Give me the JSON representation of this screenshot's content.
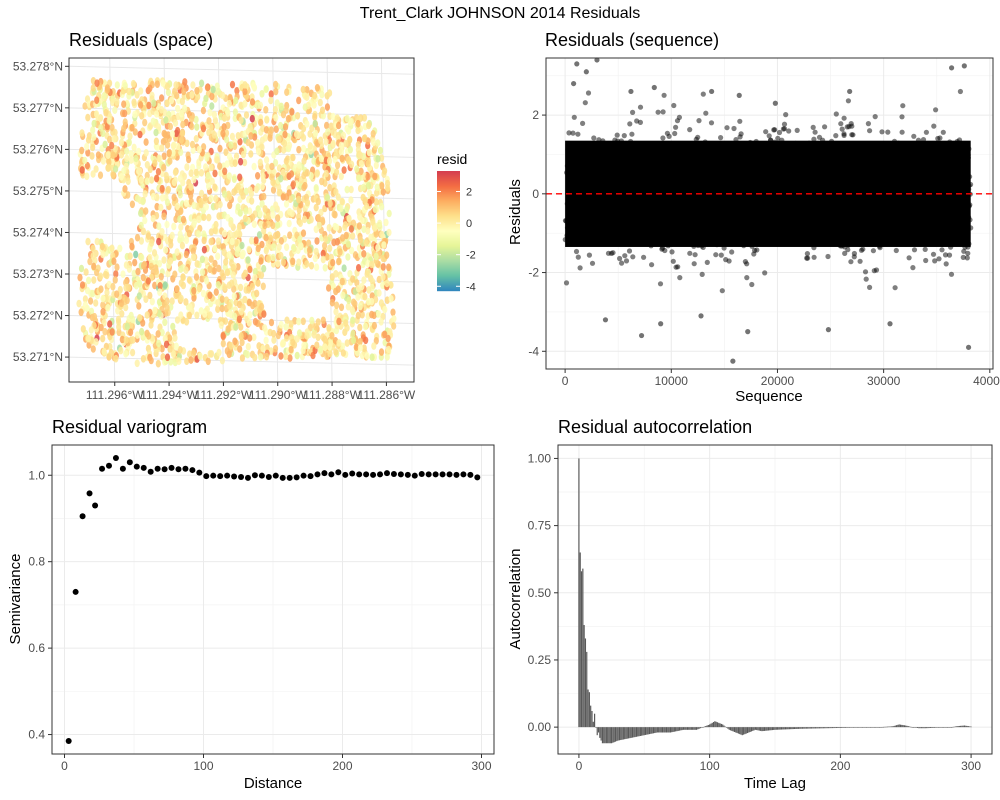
{
  "figure_title": "Trent_Clark JOHNSON 2014 Residuals",
  "chart_data": [
    {
      "id": "space",
      "type": "scatter",
      "title": "Residuals (space)",
      "xlabel": "",
      "ylabel": "",
      "x_ticks": [
        "111.296°W",
        "111.294°W",
        "111.292°W",
        "111.290°W",
        "111.288°W",
        "111.286°W"
      ],
      "y_ticks": [
        "53.271°N",
        "53.272°N",
        "53.273°N",
        "53.274°N",
        "53.275°N",
        "53.276°N",
        "53.277°N",
        "53.278°N"
      ],
      "xlim": [
        -111.2975,
        -111.2848
      ],
      "ylim": [
        53.2704,
        53.2782
      ],
      "legend": {
        "title": "resid",
        "labels": [
          "2",
          "0",
          "-2",
          "-4"
        ],
        "range": [
          -4.3,
          3.3
        ],
        "colors": [
          "#3288bd",
          "#66c2a5",
          "#abdda4",
          "#e6f598",
          "#ffffbf",
          "#fee08b",
          "#fdae61",
          "#f46d43",
          "#d53e4f"
        ],
        "placement": "right"
      },
      "field_outline_lonlat": [
        [
          -111.2968,
          53.2777
        ],
        [
          -111.2912,
          53.2776
        ],
        [
          -111.288,
          53.2775
        ],
        [
          -111.2876,
          53.277
        ],
        [
          -111.2866,
          53.2768
        ],
        [
          -111.286,
          53.2762
        ],
        [
          -111.2857,
          53.2752
        ],
        [
          -111.2857,
          53.274
        ],
        [
          -111.2856,
          53.2728
        ],
        [
          -111.2855,
          53.2716
        ],
        [
          -111.2857,
          53.271
        ],
        [
          -111.292,
          53.2709
        ],
        [
          -111.295,
          53.2708
        ],
        [
          -111.296,
          53.2709
        ],
        [
          -111.2968,
          53.2712
        ],
        [
          -111.2972,
          53.2722
        ],
        [
          -111.297,
          53.274
        ],
        [
          -111.2971,
          53.276
        ]
      ],
      "field_holes_lonlat": [
        [
          [
            -111.2972,
            53.2754
          ],
          [
            -111.2958,
            53.2752
          ],
          [
            -111.295,
            53.2745
          ],
          [
            -111.295,
            53.2738
          ],
          [
            -111.2972,
            53.2738
          ]
        ],
        [
          [
            -111.2903,
            53.2731
          ],
          [
            -111.288,
            53.2731
          ],
          [
            -111.2879,
            53.2719
          ],
          [
            -111.2903,
            53.2719
          ]
        ],
        [
          [
            -111.2935,
            53.2718
          ],
          [
            -111.292,
            53.2718
          ],
          [
            -111.2918,
            53.2712
          ],
          [
            -111.2935,
            53.2712
          ]
        ]
      ],
      "point_count_shown": 2600,
      "grid": true
    },
    {
      "id": "sequence",
      "type": "scatter",
      "title": "Residuals (sequence)",
      "xlabel": "Sequence",
      "ylabel": "Residuals",
      "x_ticks": [
        0,
        10000,
        20000,
        30000,
        40000
      ],
      "y_ticks": [
        2,
        0,
        -2,
        -4
      ],
      "xlim": [
        -1800,
        40300
      ],
      "ylim": [
        -4.45,
        3.45
      ],
      "n_points": 38200,
      "point_color": "#000000",
      "point_alpha": 0.5,
      "reference_line": {
        "y": 0,
        "color": "#ff0000",
        "style": "dashed"
      },
      "outliers": [
        [
          1100,
          3.3
        ],
        [
          800,
          2.8
        ],
        [
          2000,
          3.1
        ],
        [
          3000,
          3.4
        ],
        [
          6200,
          2.6
        ],
        [
          8400,
          2.7
        ],
        [
          13800,
          2.6
        ],
        [
          16400,
          2.5
        ],
        [
          19800,
          2.3
        ],
        [
          26800,
          2.6
        ],
        [
          36400,
          3.2
        ],
        [
          37600,
          3.25
        ],
        [
          15800,
          -4.25
        ],
        [
          7200,
          -3.6
        ],
        [
          17200,
          -3.5
        ],
        [
          24800,
          -3.45
        ],
        [
          38000,
          -3.9
        ],
        [
          9000,
          -3.3
        ],
        [
          3800,
          -3.2
        ],
        [
          12800,
          -3.1
        ],
        [
          30600,
          -3.3
        ]
      ],
      "grid": true
    },
    {
      "id": "variogram",
      "type": "scatter",
      "title": "Residual variogram",
      "xlabel": "Distance",
      "ylabel": "Semivariance",
      "x_ticks": [
        0,
        100,
        200,
        300
      ],
      "y_ticks": [
        "0.4",
        "0.6",
        "0.8",
        "1.0"
      ],
      "xlim": [
        -9,
        309
      ],
      "ylim": [
        0.355,
        1.07
      ],
      "points": [
        [
          3,
          0.385
        ],
        [
          8,
          0.73
        ],
        [
          13,
          0.905
        ],
        [
          18,
          0.958
        ],
        [
          22,
          0.93
        ],
        [
          27,
          1.015
        ],
        [
          32,
          1.022
        ],
        [
          37,
          1.04
        ],
        [
          42,
          1.015
        ],
        [
          47,
          1.03
        ],
        [
          52,
          1.02
        ],
        [
          57,
          1.017
        ],
        [
          62,
          1.008
        ],
        [
          67,
          1.015
        ],
        [
          72,
          1.014
        ],
        [
          77,
          1.017
        ],
        [
          82,
          1.014
        ],
        [
          87,
          1.015
        ],
        [
          92,
          1.012
        ],
        [
          97,
          1.006
        ],
        [
          102,
          0.998
        ],
        [
          107,
          0.999
        ],
        [
          112,
          0.998
        ],
        [
          117,
          0.999
        ],
        [
          122,
          0.997
        ],
        [
          127,
          0.996
        ],
        [
          132,
          0.994
        ],
        [
          137,
          1.0
        ],
        [
          142,
          0.999
        ],
        [
          147,
          0.996
        ],
        [
          152,
          0.999
        ],
        [
          157,
          0.994
        ],
        [
          162,
          0.994
        ],
        [
          167,
          0.995
        ],
        [
          172,
          0.999
        ],
        [
          177,
          0.998
        ],
        [
          182,
          1.002
        ],
        [
          187,
          1.005
        ],
        [
          192,
          1.002
        ],
        [
          197,
          1.007
        ],
        [
          202,
          1.001
        ],
        [
          207,
          1.004
        ],
        [
          212,
          1.002
        ],
        [
          217,
          1.002
        ],
        [
          222,
          1.001
        ],
        [
          227,
          1.002
        ],
        [
          232,
          1.005
        ],
        [
          237,
          1.003
        ],
        [
          242,
          1.002
        ],
        [
          247,
          1.001
        ],
        [
          252,
          0.999
        ],
        [
          257,
          1.003
        ],
        [
          262,
          1.002
        ],
        [
          267,
          1.002
        ],
        [
          272,
          1.002
        ],
        [
          277,
          1.002
        ],
        [
          282,
          1.001
        ],
        [
          287,
          1.002
        ],
        [
          292,
          1.001
        ],
        [
          297,
          0.995
        ]
      ],
      "grid": true
    },
    {
      "id": "autocorrelation",
      "type": "bar",
      "title": "Residual autocorrelation",
      "xlabel": "Time Lag",
      "ylabel": "Autocorrelation",
      "x_ticks": [
        0,
        100,
        200,
        300
      ],
      "y_ticks": [
        "0.00",
        "0.25",
        "0.50",
        "0.75",
        "1.00"
      ],
      "xlim": [
        -16,
        316
      ],
      "ylim": [
        -0.1,
        1.05
      ],
      "lag_max": 300,
      "key_lags": [
        [
          0,
          1.0
        ],
        [
          1,
          0.65
        ],
        [
          2,
          0.58
        ],
        [
          3,
          0.59
        ],
        [
          4,
          0.38
        ],
        [
          5,
          0.33
        ],
        [
          6,
          0.28
        ],
        [
          7,
          0.14
        ],
        [
          8,
          0.13
        ],
        [
          9,
          0.08
        ],
        [
          10,
          0.06
        ],
        [
          11,
          0.02
        ],
        [
          12,
          0.05
        ],
        [
          13,
          0.0
        ],
        [
          14,
          -0.03
        ],
        [
          15,
          -0.02
        ],
        [
          16,
          -0.04
        ],
        [
          18,
          -0.06
        ],
        [
          20,
          -0.06
        ],
        [
          25,
          -0.06
        ],
        [
          30,
          -0.05
        ],
        [
          40,
          -0.04
        ],
        [
          50,
          -0.03
        ],
        [
          60,
          -0.02
        ],
        [
          70,
          -0.02
        ],
        [
          80,
          -0.01
        ],
        [
          90,
          -0.01
        ],
        [
          95,
          0.0
        ],
        [
          100,
          0.01
        ],
        [
          104,
          0.022
        ],
        [
          110,
          0.01
        ],
        [
          115,
          -0.01
        ],
        [
          120,
          -0.02
        ],
        [
          125,
          -0.03
        ],
        [
          130,
          -0.02
        ],
        [
          135,
          -0.01
        ],
        [
          140,
          -0.015
        ],
        [
          150,
          -0.01
        ],
        [
          160,
          -0.008
        ],
        [
          170,
          -0.006
        ],
        [
          180,
          -0.005
        ],
        [
          190,
          -0.004
        ],
        [
          200,
          -0.003
        ],
        [
          210,
          -0.002
        ],
        [
          220,
          -0.002
        ],
        [
          230,
          0.0
        ],
        [
          240,
          0.003
        ],
        [
          245,
          0.01
        ],
        [
          250,
          0.006
        ],
        [
          255,
          0.0
        ],
        [
          260,
          -0.004
        ],
        [
          265,
          -0.004
        ],
        [
          270,
          -0.003
        ],
        [
          275,
          -0.002
        ],
        [
          280,
          -0.002
        ],
        [
          285,
          0.0
        ],
        [
          290,
          0.004
        ],
        [
          295,
          0.006
        ],
        [
          300,
          0.002
        ]
      ],
      "bar_color": "#595959",
      "grid": true
    }
  ]
}
